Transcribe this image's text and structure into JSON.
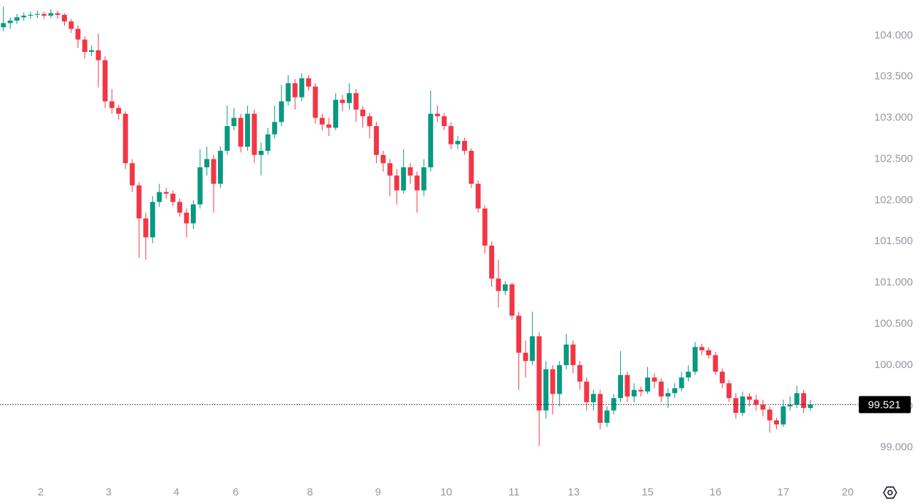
{
  "chart_data": {
    "type": "candlestick",
    "up_color": "#089981",
    "down_color": "#f23645",
    "xlim": [
      0,
      126
    ],
    "xticks": [
      {
        "value": 6,
        "label": "2"
      },
      {
        "value": 16,
        "label": "3"
      },
      {
        "value": 26,
        "label": "4"
      },
      {
        "value": 34.75,
        "label": "6"
      },
      {
        "value": 45.7,
        "label": "8"
      },
      {
        "value": 55.75,
        "label": "9"
      },
      {
        "value": 65.8,
        "label": "10"
      },
      {
        "value": 75.8,
        "label": "11"
      },
      {
        "value": 84.6,
        "label": "13"
      },
      {
        "value": 95.5,
        "label": "15"
      },
      {
        "value": 105.5,
        "label": "16"
      },
      {
        "value": 115.5,
        "label": "17"
      },
      {
        "value": 125,
        "label": "20"
      }
    ],
    "ylim": [
      98.6,
      104.43
    ],
    "yticks": [
      {
        "value": 99,
        "label": "99.000"
      },
      {
        "value": 99.5,
        "label": "99.500"
      },
      {
        "value": 100,
        "label": "100.000"
      },
      {
        "value": 100.5,
        "label": "100.500"
      },
      {
        "value": 101,
        "label": "101.000"
      },
      {
        "value": 101.5,
        "label": "101.500"
      },
      {
        "value": 102,
        "label": "102.000"
      },
      {
        "value": 102.5,
        "label": "102.500"
      },
      {
        "value": 103,
        "label": "103.000"
      },
      {
        "value": 103.5,
        "label": "103.500"
      },
      {
        "value": 104,
        "label": "104.000"
      }
    ],
    "last_price": 99.521,
    "ohlc": [
      [
        104.1,
        104.35,
        104.05,
        104.15
      ],
      [
        104.15,
        104.22,
        104.08,
        104.18
      ],
      [
        104.18,
        104.26,
        104.14,
        104.22
      ],
      [
        104.22,
        104.28,
        104.18,
        104.24
      ],
      [
        104.24,
        104.29,
        104.2,
        104.25
      ],
      [
        104.25,
        104.3,
        104.21,
        104.26
      ],
      [
        104.26,
        104.29,
        104.2,
        104.24
      ],
      [
        104.24,
        104.32,
        104.21,
        104.27
      ],
      [
        104.27,
        104.3,
        104.2,
        104.25
      ],
      [
        104.25,
        104.27,
        104.12,
        104.17
      ],
      [
        104.17,
        104.2,
        104.03,
        104.08
      ],
      [
        104.08,
        104.12,
        103.85,
        103.95
      ],
      [
        103.95,
        103.99,
        103.72,
        103.8
      ],
      [
        103.8,
        103.88,
        103.75,
        103.82
      ],
      [
        103.82,
        104.02,
        103.37,
        103.7
      ],
      [
        103.7,
        103.75,
        103.12,
        103.2
      ],
      [
        103.2,
        103.35,
        103.05,
        103.12
      ],
      [
        103.12,
        103.16,
        102.98,
        103.05
      ],
      [
        103.05,
        103.08,
        102.38,
        102.45
      ],
      [
        102.45,
        102.5,
        102.1,
        102.18
      ],
      [
        102.18,
        102.22,
        101.3,
        101.78
      ],
      [
        101.78,
        101.85,
        101.28,
        101.55
      ],
      [
        101.55,
        102.05,
        101.48,
        101.98
      ],
      [
        101.98,
        102.2,
        101.92,
        102.1
      ],
      [
        102.1,
        102.15,
        102.02,
        102.08
      ],
      [
        102.08,
        102.12,
        101.93,
        101.98
      ],
      [
        101.98,
        102.02,
        101.8,
        101.85
      ],
      [
        101.85,
        101.9,
        101.55,
        101.72
      ],
      [
        101.72,
        102.0,
        101.65,
        101.95
      ],
      [
        101.95,
        102.62,
        101.9,
        102.4
      ],
      [
        102.4,
        102.65,
        102.3,
        102.5
      ],
      [
        102.5,
        102.55,
        101.85,
        102.2
      ],
      [
        102.2,
        102.65,
        102.15,
        102.6
      ],
      [
        102.6,
        103.15,
        102.55,
        102.9
      ],
      [
        102.9,
        103.12,
        102.85,
        103.0
      ],
      [
        103.0,
        103.05,
        102.58,
        102.65
      ],
      [
        102.65,
        103.15,
        102.6,
        103.05
      ],
      [
        103.05,
        103.1,
        102.45,
        102.55
      ],
      [
        102.55,
        102.7,
        102.3,
        102.6
      ],
      [
        102.6,
        102.88,
        102.55,
        102.8
      ],
      [
        102.8,
        103.15,
        102.75,
        102.95
      ],
      [
        102.95,
        103.4,
        102.9,
        103.2
      ],
      [
        103.2,
        103.52,
        103.15,
        103.42
      ],
      [
        103.42,
        103.47,
        103.1,
        103.25
      ],
      [
        103.25,
        103.54,
        103.2,
        103.48
      ],
      [
        103.48,
        103.52,
        103.33,
        103.38
      ],
      [
        103.38,
        103.42,
        102.93,
        103.0
      ],
      [
        103.0,
        103.05,
        102.85,
        102.92
      ],
      [
        102.92,
        103.0,
        102.78,
        102.88
      ],
      [
        102.88,
        103.3,
        102.85,
        103.22
      ],
      [
        103.22,
        103.28,
        103.08,
        103.18
      ],
      [
        103.18,
        103.42,
        103.1,
        103.3
      ],
      [
        103.3,
        103.35,
        102.95,
        103.1
      ],
      [
        103.1,
        103.14,
        102.88,
        103.02
      ],
      [
        103.02,
        103.06,
        102.75,
        102.9
      ],
      [
        102.9,
        102.95,
        102.45,
        102.55
      ],
      [
        102.55,
        102.6,
        102.35,
        102.45
      ],
      [
        102.45,
        102.5,
        102.05,
        102.3
      ],
      [
        102.3,
        102.38,
        101.95,
        102.12
      ],
      [
        102.12,
        102.62,
        102.08,
        102.4
      ],
      [
        102.4,
        102.45,
        102.2,
        102.3
      ],
      [
        102.3,
        102.35,
        101.85,
        102.12
      ],
      [
        102.12,
        102.5,
        102.05,
        102.4
      ],
      [
        102.4,
        103.33,
        102.35,
        103.05
      ],
      [
        103.05,
        103.15,
        102.95,
        103.02
      ],
      [
        103.02,
        103.06,
        102.85,
        102.9
      ],
      [
        102.9,
        102.95,
        102.62,
        102.68
      ],
      [
        102.68,
        102.78,
        102.62,
        102.72
      ],
      [
        102.72,
        102.76,
        102.55,
        102.6
      ],
      [
        102.6,
        102.63,
        102.15,
        102.2
      ],
      [
        102.2,
        102.24,
        101.85,
        101.9
      ],
      [
        101.9,
        101.94,
        101.35,
        101.45
      ],
      [
        101.45,
        101.5,
        100.95,
        101.05
      ],
      [
        101.05,
        101.28,
        100.7,
        100.9
      ],
      [
        100.9,
        101.02,
        100.85,
        100.98
      ],
      [
        100.98,
        101.0,
        100.55,
        100.6
      ],
      [
        100.6,
        100.65,
        99.7,
        100.15
      ],
      [
        100.15,
        100.3,
        99.85,
        100.05
      ],
      [
        100.05,
        100.65,
        100.0,
        100.35
      ],
      [
        100.35,
        100.4,
        99.02,
        99.45
      ],
      [
        99.45,
        100.05,
        99.35,
        99.95
      ],
      [
        99.95,
        100.0,
        99.4,
        99.65
      ],
      [
        99.65,
        100.05,
        99.5,
        100.0
      ],
      [
        100.0,
        100.38,
        99.95,
        100.25
      ],
      [
        100.25,
        100.3,
        99.9,
        100.0
      ],
      [
        100.0,
        100.05,
        99.7,
        99.8
      ],
      [
        99.8,
        99.85,
        99.45,
        99.55
      ],
      [
        99.55,
        99.7,
        99.45,
        99.65
      ],
      [
        99.65,
        99.7,
        99.22,
        99.3
      ],
      [
        99.3,
        99.5,
        99.25,
        99.45
      ],
      [
        99.45,
        99.65,
        99.4,
        99.6
      ],
      [
        99.6,
        100.17,
        99.55,
        99.88
      ],
      [
        99.88,
        99.92,
        99.55,
        99.62
      ],
      [
        99.62,
        99.78,
        99.55,
        99.7
      ],
      [
        99.7,
        99.74,
        99.62,
        99.68
      ],
      [
        99.68,
        99.98,
        99.65,
        99.85
      ],
      [
        99.85,
        99.9,
        99.72,
        99.8
      ],
      [
        99.8,
        99.84,
        99.55,
        99.62
      ],
      [
        99.62,
        99.72,
        99.48,
        99.66
      ],
      [
        99.66,
        99.78,
        99.6,
        99.72
      ],
      [
        99.72,
        99.92,
        99.68,
        99.85
      ],
      [
        99.85,
        100.0,
        99.8,
        99.92
      ],
      [
        99.92,
        100.28,
        99.88,
        100.22
      ],
      [
        100.22,
        100.26,
        100.12,
        100.18
      ],
      [
        100.18,
        100.22,
        100.08,
        100.12
      ],
      [
        100.12,
        100.16,
        99.88,
        99.92
      ],
      [
        99.92,
        99.96,
        99.72,
        99.78
      ],
      [
        99.78,
        99.82,
        99.55,
        99.6
      ],
      [
        99.6,
        99.66,
        99.35,
        99.42
      ],
      [
        99.42,
        99.68,
        99.38,
        99.62
      ],
      [
        99.62,
        99.66,
        99.5,
        99.58
      ],
      [
        99.58,
        99.64,
        99.45,
        99.52
      ],
      [
        99.52,
        99.58,
        99.38,
        99.46
      ],
      [
        99.46,
        99.5,
        99.18,
        99.33
      ],
      [
        99.33,
        99.36,
        99.22,
        99.28
      ],
      [
        99.28,
        99.58,
        99.25,
        99.5
      ],
      [
        99.5,
        99.62,
        99.45,
        99.52
      ],
      [
        99.52,
        99.75,
        99.48,
        99.66
      ],
      [
        99.66,
        99.7,
        99.42,
        99.48
      ],
      [
        99.48,
        99.58,
        99.45,
        99.521
      ]
    ]
  }
}
